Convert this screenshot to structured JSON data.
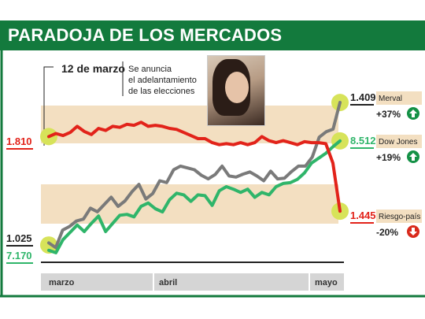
{
  "title": "PARADOJA DE LOS MERCADOS",
  "annotation": {
    "date": "12 de marzo",
    "text_line1": "Se anuncia",
    "text_line2": "el adelantamiento",
    "text_line3": "de las elecciones"
  },
  "colors": {
    "brand_green": "#137a3d",
    "band_beige": "#f3dfc1",
    "merval": "#7a7a7a",
    "dow": "#2fb56a",
    "riesgo": "#e2231a",
    "highlight": "#d7e35a",
    "axis_bar": "#d5d5d5",
    "up_icon": "#149146",
    "down_icon": "#d92a1c"
  },
  "icons": {
    "up": "arrow-up-icon",
    "down": "arrow-down-icon",
    "photo": "portrait-photo"
  },
  "chart_data": {
    "type": "line",
    "title": "PARADOJA DE LOS MERCADOS",
    "x_labels": [
      "marzo",
      "abril",
      "mayo"
    ],
    "series": [
      {
        "name": "Merval",
        "start_label": "1.025",
        "end_label": "1.409",
        "change": "+37%",
        "direction": "up",
        "values": [
          1025,
          1012,
          1060,
          1070,
          1085,
          1090,
          1120,
          1110,
          1130,
          1150,
          1125,
          1140,
          1165,
          1185,
          1145,
          1160,
          1195,
          1190,
          1225,
          1235,
          1230,
          1225,
          1210,
          1200,
          1212,
          1235,
          1208,
          1205,
          1213,
          1219,
          1208,
          1195,
          1221,
          1200,
          1202,
          1220,
          1235,
          1235,
          1260,
          1314,
          1329,
          1336,
          1409
        ]
      },
      {
        "name": "Dow Jones",
        "start_label": "7.170",
        "end_label": "8.512",
        "change": "+19%",
        "direction": "up",
        "values": [
          7170,
          7140,
          7300,
          7390,
          7480,
          7400,
          7500,
          7590,
          7400,
          7500,
          7600,
          7610,
          7580,
          7710,
          7750,
          7680,
          7640,
          7790,
          7870,
          7850,
          7770,
          7850,
          7840,
          7720,
          7900,
          7950,
          7920,
          7880,
          7920,
          7820,
          7880,
          7850,
          7950,
          7990,
          8000,
          8040,
          8120,
          8240,
          8300,
          8360,
          8440,
          8512
        ]
      },
      {
        "name": "Riesgo-país",
        "start_label": "1.810",
        "end_label": "1.445",
        "change": "-20%",
        "direction": "down",
        "values": [
          1810,
          1825,
          1815,
          1830,
          1860,
          1835,
          1820,
          1850,
          1840,
          1860,
          1855,
          1870,
          1865,
          1880,
          1860,
          1865,
          1860,
          1850,
          1845,
          1830,
          1815,
          1800,
          1800,
          1780,
          1770,
          1775,
          1770,
          1780,
          1770,
          1780,
          1810,
          1790,
          1780,
          1790,
          1780,
          1770,
          1785,
          1780,
          1780,
          1775,
          1680,
          1445
        ]
      }
    ]
  }
}
